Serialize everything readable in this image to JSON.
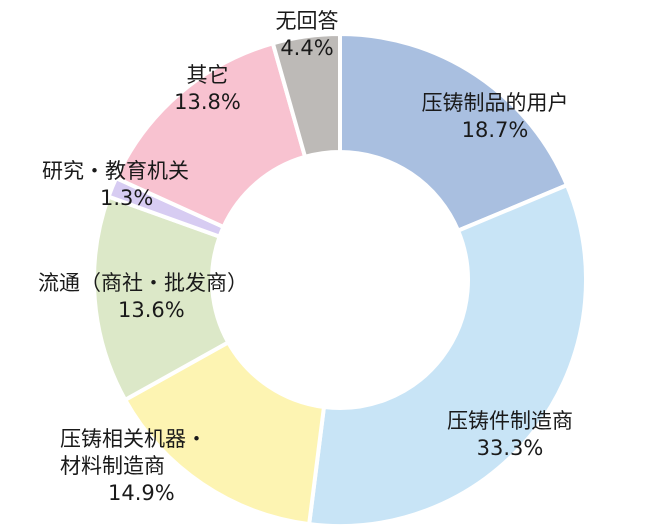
{
  "chart_data": {
    "type": "pie",
    "title": "",
    "slices": [
      {
        "name": "压铸制品的用户",
        "value": 18.7,
        "label": "18.7%",
        "color": "#a9bfe0"
      },
      {
        "name": "压铸件制造商",
        "value": 33.3,
        "label": "33.3%",
        "color": "#c8e4f6"
      },
      {
        "name": "压铸相关机器・材料制造商",
        "name_lines": [
          "压铸相关机器・",
          "材料制造商"
        ],
        "value": 14.9,
        "label": "14.9%",
        "color": "#fdf4b2"
      },
      {
        "name": "流通（商社・批发商）",
        "value": 13.6,
        "label": "13.6%",
        "color": "#dce8c8"
      },
      {
        "name": "研究・教育机关",
        "value": 1.3,
        "label": "1.3%",
        "color": "#d7ccf2"
      },
      {
        "name": "其它",
        "value": 13.8,
        "label": "13.8%",
        "color": "#f8c2d0"
      },
      {
        "name": "无回答",
        "value": 4.4,
        "label": "4.4%",
        "color": "#bdbab7"
      }
    ],
    "donut": true,
    "legend": "none"
  }
}
